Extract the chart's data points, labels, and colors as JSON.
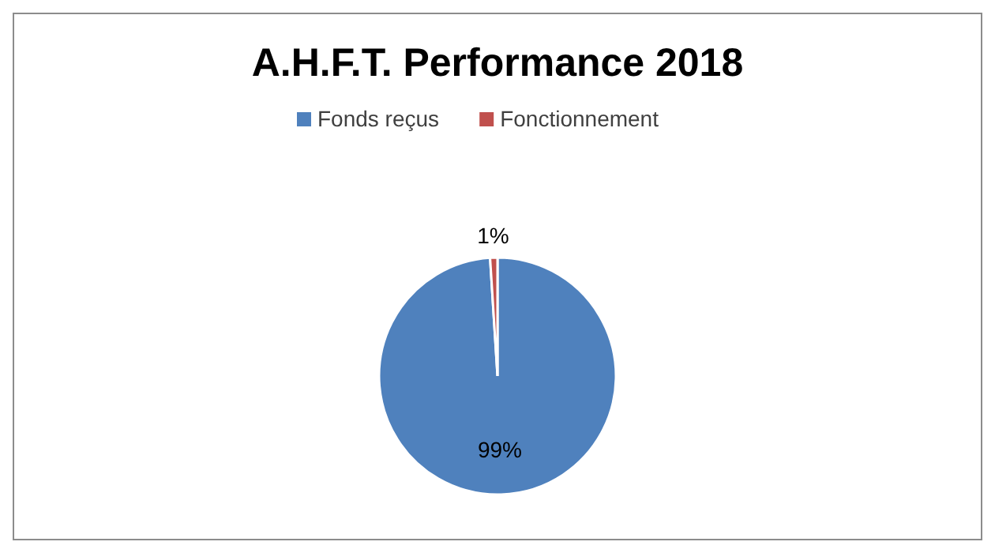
{
  "chart_data": {
    "type": "pie",
    "title": "A.H.F.T. Performance 2018",
    "categories": [
      "Fonds reçus",
      "Fonctionnement"
    ],
    "values": [
      99,
      1
    ],
    "colors": [
      "#4f81bd",
      "#c0504d"
    ],
    "value_labels": [
      "99%",
      "1%"
    ],
    "legend": "top"
  }
}
